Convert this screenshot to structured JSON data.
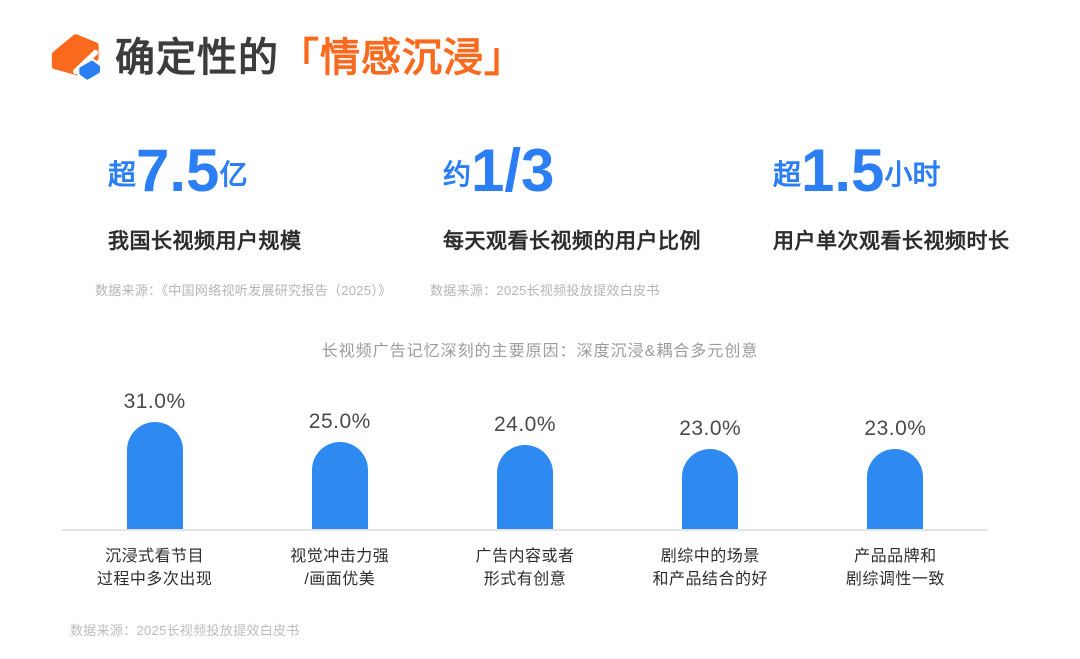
{
  "header": {
    "title_prefix": "确定性的",
    "title_highlight": "「情感沉浸」"
  },
  "stats": [
    {
      "prefix": "超",
      "value": "7.5",
      "suffix": "亿",
      "label": "我国长视频用户规模",
      "source": "数据来源：《中国网络视听发展研究报告（2025）》"
    },
    {
      "prefix": "约",
      "value": "1/3",
      "suffix": "",
      "label": "每天观看长视频的用户比例",
      "source": "数据来源：2025长视频投放提效白皮书"
    },
    {
      "prefix": "超",
      "value": "1.5",
      "suffix": "小时",
      "label": "用户单次观看长视频时长",
      "source": ""
    }
  ],
  "chart_data": {
    "type": "bar",
    "title": "长视频广告记忆深刻的主要原因：深度沉浸&耦合多元创意",
    "categories": [
      "沉浸式看节目\n过程中多次出现",
      "视觉冲击力强\n/画面优美",
      "广告内容或者\n形式有创意",
      "剧综中的场景\n和产品结合的好",
      "产品品牌和\n剧综调性一致"
    ],
    "values": [
      31.0,
      25.0,
      24.0,
      23.0,
      23.0
    ],
    "value_labels": [
      "31.0%",
      "25.0%",
      "24.0%",
      "23.0%",
      "23.0%"
    ],
    "ylabel": "",
    "xlabel": "",
    "ylim": [
      0,
      33
    ],
    "grid": false,
    "legend": false,
    "bar_color": "#2e89f0"
  },
  "footer": {
    "source": "数据来源：2025长视频投放提效白皮书"
  },
  "colors": {
    "accent_blue": "#2b7ef3",
    "bar_blue": "#2e89f0",
    "brand_orange": "#fa6a1e",
    "title_dark": "#3c3c3c",
    "muted_gray": "#9c9c9c",
    "source_gray": "#b5b5b5"
  }
}
